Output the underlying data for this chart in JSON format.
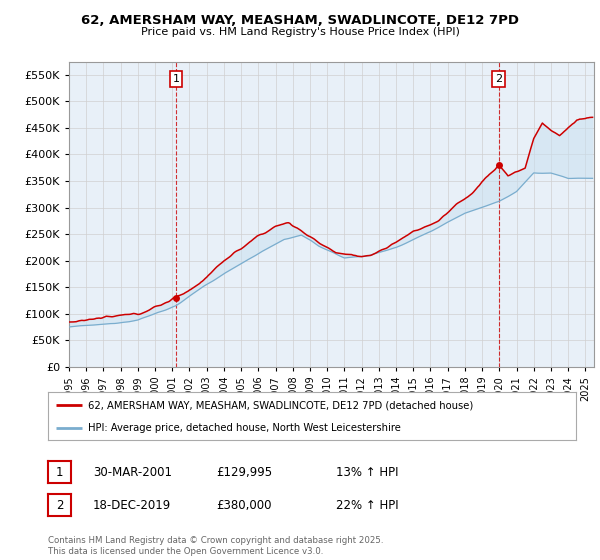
{
  "title": "62, AMERSHAM WAY, MEASHAM, SWADLINCOTE, DE12 7PD",
  "subtitle": "Price paid vs. HM Land Registry's House Price Index (HPI)",
  "legend_line1": "62, AMERSHAM WAY, MEASHAM, SWADLINCOTE, DE12 7PD (detached house)",
  "legend_line2": "HPI: Average price, detached house, North West Leicestershire",
  "annotation1_label": "1",
  "annotation1_date": "30-MAR-2001",
  "annotation1_price": "£129,995",
  "annotation1_hpi": "13% ↑ HPI",
  "annotation2_label": "2",
  "annotation2_date": "18-DEC-2019",
  "annotation2_price": "£380,000",
  "annotation2_hpi": "22% ↑ HPI",
  "footnote": "Contains HM Land Registry data © Crown copyright and database right 2025.\nThis data is licensed under the Open Government Licence v3.0.",
  "red_color": "#cc0000",
  "blue_color": "#7aadce",
  "blue_fill": "#c8dff0",
  "chart_bg": "#e8f0f8",
  "ylim": [
    0,
    575000
  ],
  "yticks": [
    0,
    50000,
    100000,
    150000,
    200000,
    250000,
    300000,
    350000,
    400000,
    450000,
    500000,
    550000
  ],
  "sale1_x": 2001.21,
  "sale1_y": 129995,
  "sale2_x": 2019.96,
  "sale2_y": 380000,
  "xmin": 1995.0,
  "xmax": 2025.5
}
